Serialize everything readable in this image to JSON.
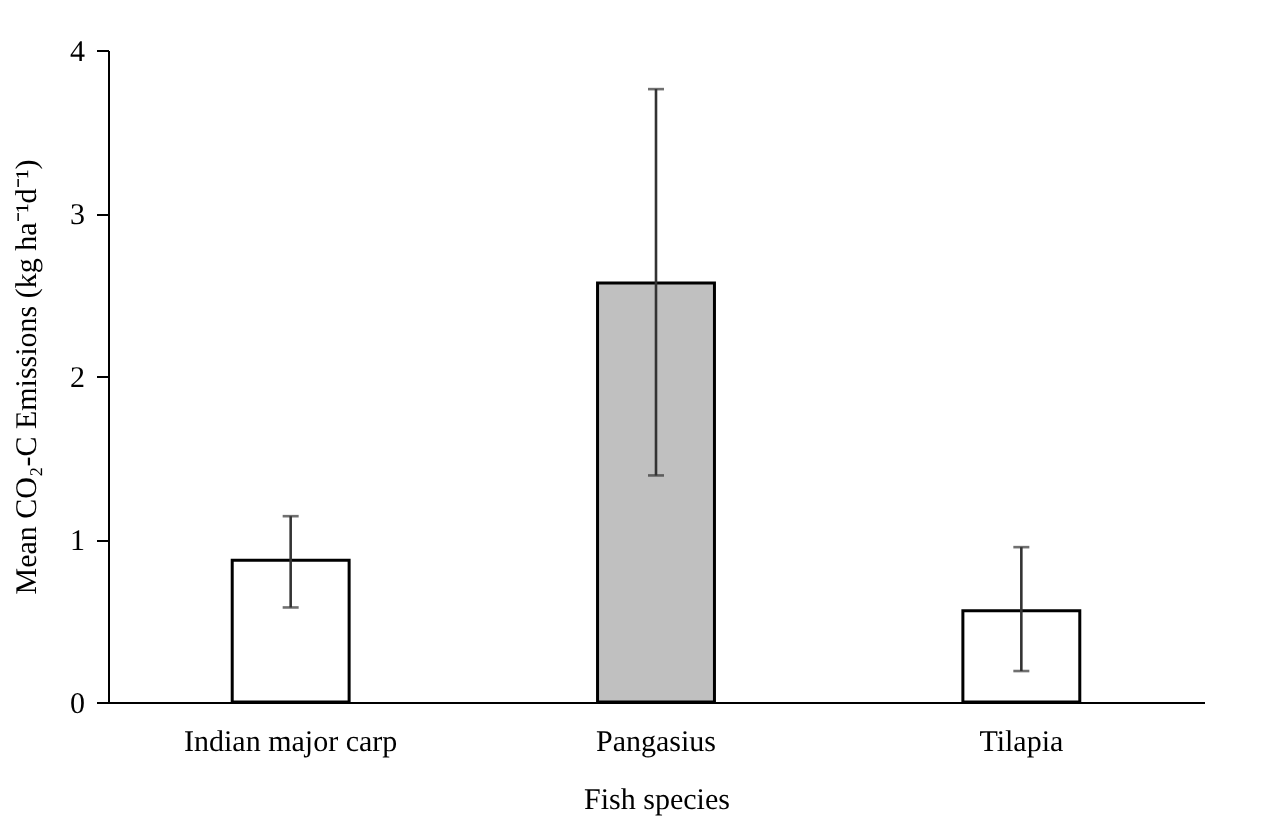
{
  "chart_data": {
    "type": "bar",
    "xlabel": "Fish species",
    "ylabel": "Mean CO₂-C Emissions  (kg ha⁻¹d⁻¹)",
    "categories": [
      "Indian major carp",
      "Pangasius",
      "Tilapia"
    ],
    "values": [
      0.87,
      2.57,
      0.56
    ],
    "colors": [
      "#ffffff",
      "#c0c0c0",
      "#ffffff"
    ],
    "errors": [
      [
        0.58,
        1.14
      ],
      [
        1.39,
        3.76
      ],
      [
        0.19,
        0.95
      ]
    ],
    "ylim": [
      0,
      4
    ],
    "yticks": [
      0,
      1,
      2,
      3,
      4
    ],
    "grid": false
  }
}
